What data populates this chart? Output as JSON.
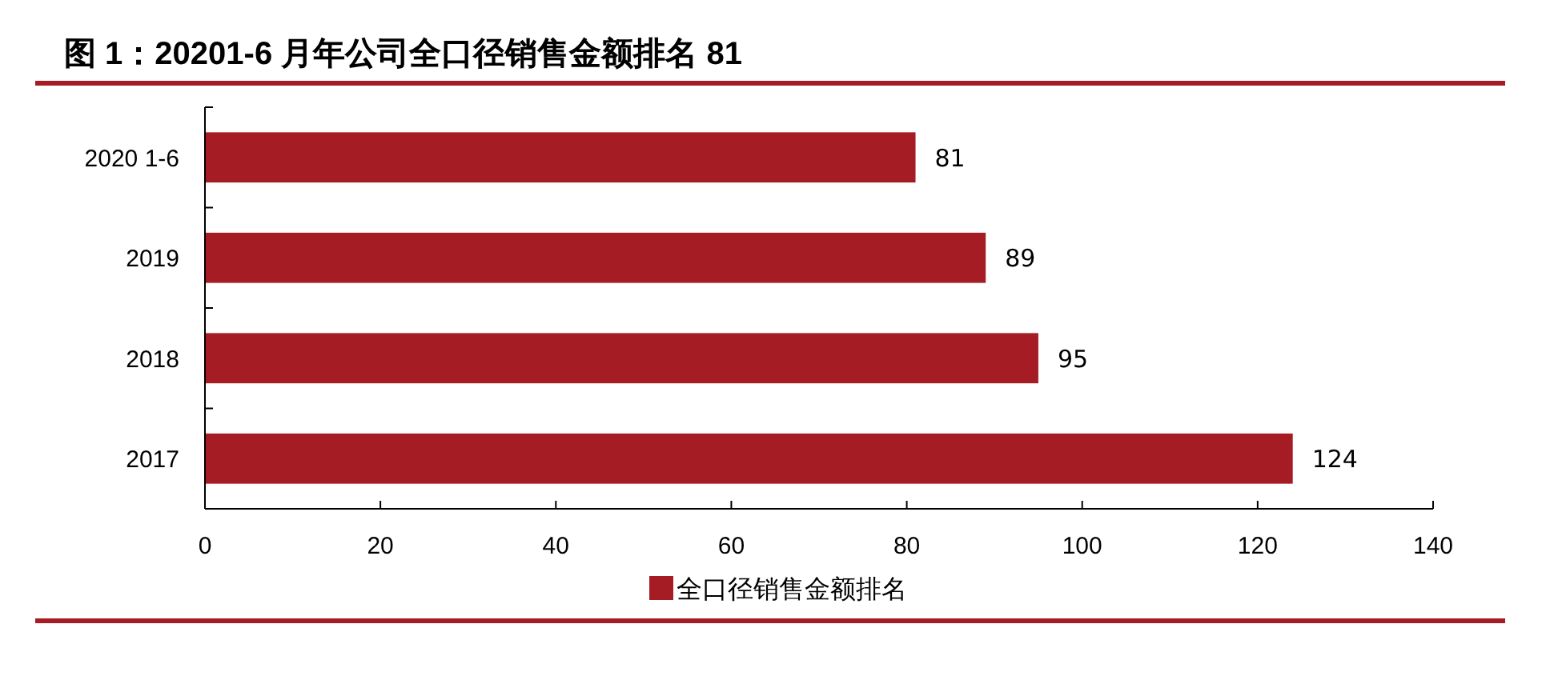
{
  "chart_data": {
    "type": "bar",
    "orientation": "horizontal",
    "title": "图 1：20201-6 月年公司全口径销售金额排名 81",
    "categories": [
      "2020 1-6",
      "2019",
      "2018",
      "2017"
    ],
    "series": [
      {
        "name": "全口径销售金额排名",
        "color": "#a51c24",
        "values": [
          81,
          89,
          95,
          124
        ]
      }
    ],
    "xlim": [
      0,
      140
    ],
    "xticks": [
      0,
      20,
      40,
      60,
      80,
      100,
      120,
      140
    ],
    "data_labels": true,
    "legend": "bottom",
    "grid": false
  }
}
